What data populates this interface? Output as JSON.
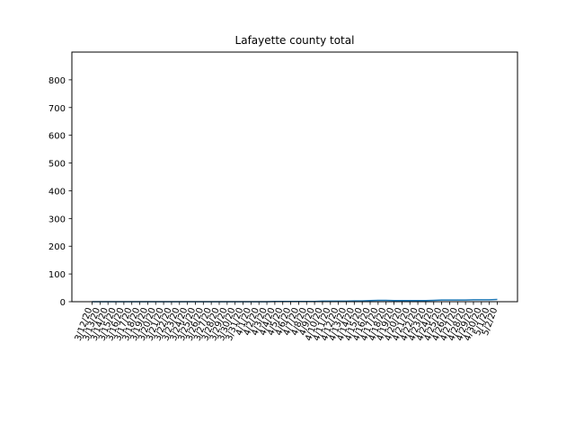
{
  "chart_data": {
    "type": "line",
    "title": "Lafayette county total",
    "xlabel": "",
    "ylabel": "",
    "x": [
      "3/12/20",
      "3/13/20",
      "3/14/20",
      "3/15/20",
      "3/16/20",
      "3/17/20",
      "3/18/20",
      "3/19/20",
      "3/20/20",
      "3/21/20",
      "3/22/20",
      "3/23/20",
      "3/24/20",
      "3/25/20",
      "3/26/20",
      "3/27/20",
      "3/28/20",
      "3/29/20",
      "3/30/20",
      "3/31/20",
      "4/1/20",
      "4/2/20",
      "4/3/20",
      "4/4/20",
      "4/5/20",
      "4/6/20",
      "4/7/20",
      "4/8/20",
      "4/9/20",
      "4/10/20",
      "4/11/20",
      "4/12/20",
      "4/13/20",
      "4/14/20",
      "4/15/20",
      "4/16/20",
      "4/17/20",
      "4/18/20",
      "4/19/20",
      "4/20/20",
      "4/21/20",
      "4/22/20",
      "4/23/20",
      "4/24/20",
      "4/25/20",
      "4/26/20",
      "4/27/20",
      "4/28/20",
      "4/29/20",
      "4/30/20",
      "5/1/20",
      "5/2/20"
    ],
    "series": [
      {
        "values": [
          0,
          0,
          0,
          0,
          0,
          0,
          0,
          0,
          0,
          0,
          0,
          0,
          0,
          0,
          0,
          0,
          0,
          0,
          0,
          0,
          0,
          0,
          0,
          1,
          1,
          1,
          1,
          1,
          1,
          2,
          2,
          2,
          2,
          3,
          3,
          4,
          5,
          5,
          4,
          4,
          4,
          4,
          4,
          5,
          6,
          6,
          6,
          6,
          7,
          7,
          7,
          8
        ],
        "color": "#1f77b4"
      }
    ],
    "ylim": [
      0,
      900
    ],
    "yticks": [
      0,
      100,
      200,
      300,
      400,
      500,
      600,
      700,
      800
    ],
    "grid": false,
    "legend": "none"
  }
}
